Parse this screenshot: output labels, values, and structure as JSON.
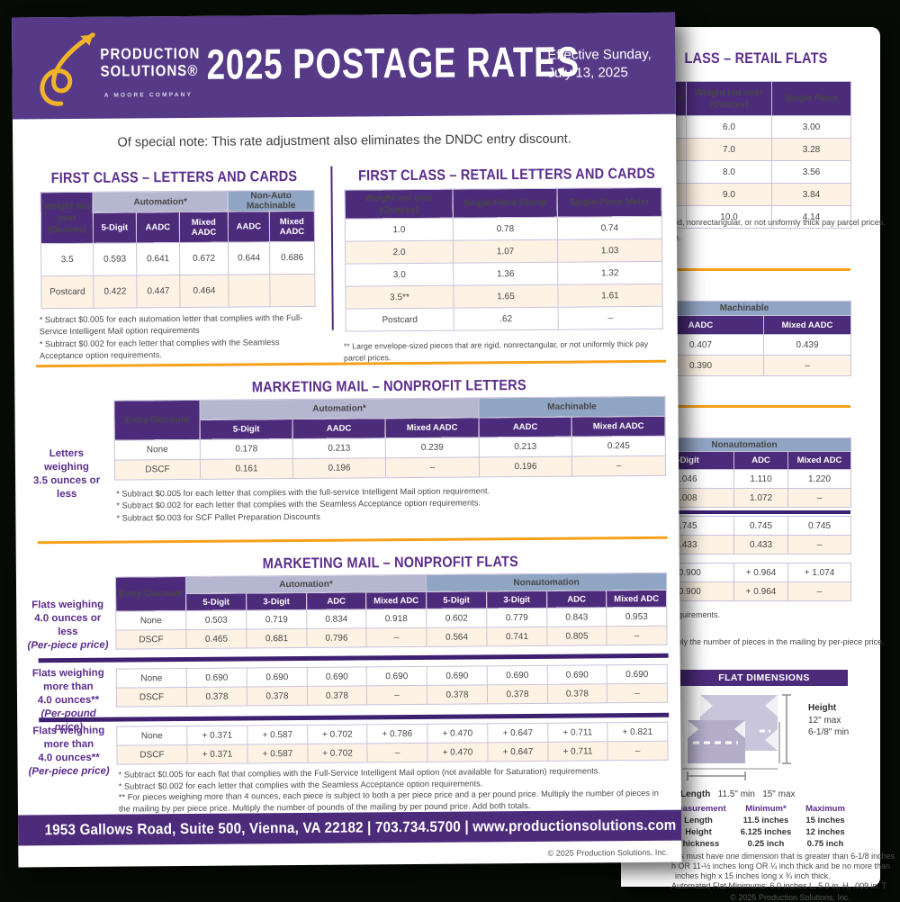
{
  "colors": {
    "header_purple": "#573a87",
    "dark_purple": "#4d2b7b",
    "lavender": "#b5b6cf",
    "blue_gray": "#90a5c3",
    "cream": "#fdf2e4",
    "orange": "#f7a11a",
    "logo_gold": "#f0b429"
  },
  "front": {
    "logo": {
      "line1": "PRODUCTION",
      "line2": "SOLUTIONS®",
      "tagline": "A MOORE COMPANY"
    },
    "header": {
      "title": "2025 POSTAGE RATES",
      "effective_line1": "Effective Sunday,",
      "effective_line2": "July 13, 2025"
    },
    "note": "Of special note: This rate adjustment also eliminates the DNDC entry discount.",
    "fc_letters": {
      "title": "FIRST CLASS – LETTERS AND CARDS",
      "corner_header": "Weight not over (Ounces)",
      "groups": [
        "Automation*",
        "Non-Auto Machinable"
      ],
      "columns": [
        "5-Digit",
        "AADC",
        "Mixed AADC",
        "AADC",
        "Mixed AADC"
      ],
      "rows": [
        [
          "3.5",
          "0.593",
          "0.641",
          "0.672",
          "0.644",
          "0.686"
        ],
        [
          "Postcard",
          "0.422",
          "0.447",
          "0.464",
          "",
          ""
        ]
      ],
      "footnotes": [
        "* Subtract $0.005 for each automation letter that complies with the Full-Service Intelligent Mail option requirements",
        "* Subtract $0.002 for each letter that complies with the Seamless Acceptance option requirements."
      ]
    },
    "fc_retail": {
      "title": "FIRST CLASS – RETAIL LETTERS AND CARDS",
      "columns": [
        "Weight not over (Ounces)",
        "Single-Piece Stamp",
        "Single-Piece Meter"
      ],
      "rows": [
        [
          "1.0",
          "0.78",
          "0.74"
        ],
        [
          "2.0",
          "1.07",
          "1.03"
        ],
        [
          "3.0",
          "1.36",
          "1.32"
        ],
        [
          "3.5**",
          "1.65",
          "1.61"
        ],
        [
          "Postcard",
          ".62",
          "–"
        ]
      ],
      "footnote": "** Large envelope-sized pieces that are rigid, nonrectangular, or not uniformly thick pay parcel prices."
    },
    "mm_letters": {
      "title": "MARKETING MAIL – NONPROFIT LETTERS",
      "side_label_lines": [
        "Letters",
        "weighing",
        "3.5 ounces or less"
      ],
      "corner_header": "Entry Discount",
      "groups": [
        "Automation*",
        "Machinable"
      ],
      "columns": [
        "5-Digit",
        "AADC",
        "Mixed AADC",
        "AADC",
        "Mixed AADC"
      ],
      "rows": [
        [
          "None",
          "0.178",
          "0.213",
          "0.239",
          "0.213",
          "0.245"
        ],
        [
          "DSCF",
          "0.161",
          "0.196",
          "–",
          "0.196",
          "–"
        ]
      ],
      "footnotes": [
        "* Subtract $0.005 for each letter that complies with the full-service Intelligent Mail option requirement.",
        "* Subtract $0.002 for each letter that complies with the Seamless Acceptance option requirements.",
        "* Subtract $0.003 for SCF Pallet Preparation Discounts"
      ]
    },
    "mm_flats": {
      "title": "MARKETING MAIL – NONPROFIT FLATS",
      "corner_header": "Entry Discount",
      "groups": [
        "Automation*",
        "Nonautomation"
      ],
      "columns": [
        "5-Digit",
        "3-Digit",
        "ADC",
        "Mixed ADC",
        "5-Digit",
        "3-Digit",
        "ADC",
        "Mixed ADC"
      ],
      "table1": {
        "side_label_lines": [
          "Flats weighing",
          "4.0 ounces or less"
        ],
        "side_label_italic": "(Per-piece price)",
        "rows": [
          [
            "None",
            "0.503",
            "0.719",
            "0.834",
            "0.918",
            "0.602",
            "0.779",
            "0.843",
            "0.953"
          ],
          [
            "DSCF",
            "0.465",
            "0.681",
            "0.796",
            "–",
            "0.564",
            "0.741",
            "0.805",
            "–"
          ]
        ]
      },
      "table2": {
        "side_label_lines": [
          "Flats weighing",
          "more than",
          "4.0 ounces**"
        ],
        "side_label_italic": "(Per-pound price)",
        "rows": [
          [
            "None",
            "0.690",
            "0.690",
            "0.690",
            "0.690",
            "0.690",
            "0.690",
            "0.690",
            "0.690"
          ],
          [
            "DSCF",
            "0.378",
            "0.378",
            "0.378",
            "–",
            "0.378",
            "0.378",
            "0.378",
            "–"
          ]
        ]
      },
      "table3": {
        "side_label_lines": [
          "Flats weighing",
          "more than",
          "4.0 ounces**"
        ],
        "side_label_italic": "(Per-piece price)",
        "rows": [
          [
            "None",
            "+ 0.371",
            "+ 0.587",
            "+ 0.702",
            "+ 0.786",
            "+ 0.470",
            "+ 0.647",
            "+ 0.711",
            "+ 0.821"
          ],
          [
            "DSCF",
            "+ 0.371",
            "+ 0.587",
            "+ 0.702",
            "–",
            "+ 0.470",
            "+ 0.647",
            "+ 0.711",
            "–"
          ]
        ]
      },
      "footnotes": [
        "* Subtract $0.005 for each flat that complies with the Full-Service Intelligent Mail option (not available for Saturation) requirements.",
        "* Subtract $0.002 for each letter that complies with the Seamless Acceptance option requirements.",
        "** For pieces weighing more than 4 ounces, each piece is subject to both a per piece price and a per pound price. Multiply the number of pieces in the mailing by per piece price. Multiply the number of pounds of the mailing by per pound price. Add both totals."
      ]
    },
    "footer": {
      "address": "1953 Gallows Road, Suite 500, Vienna, VA 22182 | 703.734.5700 | www.productionsolutions.com",
      "copyright": "© 2025 Production Solutions, Inc."
    }
  },
  "back": {
    "retail_flats": {
      "title_fragment": "LASS – RETAIL FLATS",
      "partial_col_fragment": "ece",
      "columns": [
        "Weight not over (Ounces)",
        "Single Piece"
      ],
      "rows": [
        [
          "",
          "6.0",
          "3.00"
        ],
        [
          "",
          "7.0",
          "3.28"
        ],
        [
          "",
          "8.0",
          "3.56"
        ],
        [
          "",
          "9.0",
          "3.84"
        ],
        [
          "",
          "10.0",
          "4.14"
        ]
      ],
      "footnote_fragments": [
        "gid, nonrectangular, or not uniformly thick pay parcel prices.",
        "re."
      ]
    },
    "machinable": {
      "group": "Machinable",
      "columns": [
        "AADC",
        "Mixed AADC"
      ],
      "rows": [
        [
          "0.407",
          "0.439"
        ],
        [
          "0.390",
          "–"
        ]
      ]
    },
    "nonautomation": {
      "group": "Nonautomation",
      "columns": [
        "3-Digit",
        "ADC",
        "Mixed ADC"
      ],
      "rows1": [
        [
          "1.046",
          "1.110",
          "1.220"
        ],
        [
          "1.008",
          "1.072",
          "–"
        ]
      ],
      "rows2": [
        [
          "0.745",
          "0.745",
          "0.745"
        ],
        [
          "0.433",
          "0.433",
          "–"
        ]
      ],
      "rows3": [
        [
          "+ 0.900",
          "+ 0.964",
          "+ 1.074"
        ],
        [
          "+ 0.900",
          "+ 0.964",
          "–"
        ]
      ],
      "footnote_fragments": [
        "equirements.",
        "tiply the number of pieces in the mailing by per-piece price."
      ]
    },
    "flat_dimensions": {
      "title": "FLAT DIMENSIONS",
      "height_label": "Height",
      "height_max": "12\" max",
      "height_min": "6-1/8\" min",
      "length_label": "Length",
      "length_min": "11.5\" min",
      "length_max": "15\" max",
      "measure": {
        "columns": [
          "Measurement",
          "Minimum*",
          "Maximum"
        ],
        "rows": [
          [
            "Length",
            "11.5 inches",
            "15 inches"
          ],
          [
            "Height",
            "6.125 inches",
            "12 inches"
          ],
          [
            "Thickness",
            "0.25 inch",
            "0.75 inch"
          ]
        ]
      },
      "footnote_fragments": [
        "lats must have one dimension that is greater than 6-1/8 inches",
        "h OR 11-½ inches long OR ¼ inch thick and be no more than",
        "inches high x 15 inches long x ¾ inch thick.",
        "Automated Flat Minimums: 6.0 inches L, 5.0 in. H, .009 in. T"
      ]
    },
    "copyright": "© 2025 Production Solutions, Inc."
  }
}
